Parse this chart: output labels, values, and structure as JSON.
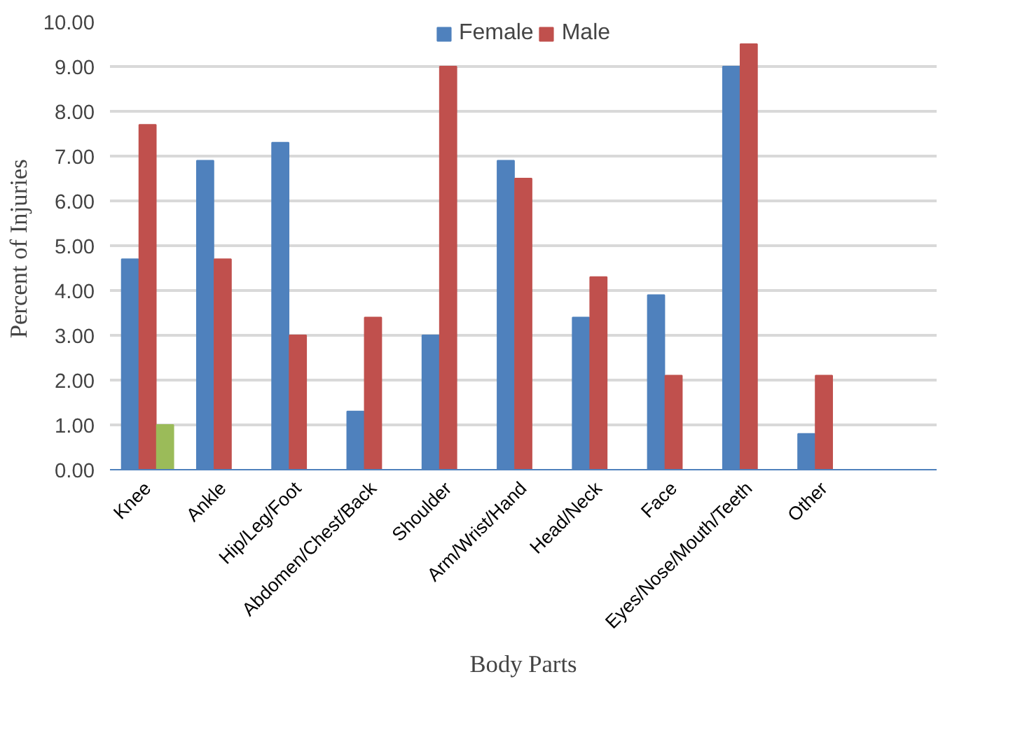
{
  "chart_data": {
    "type": "bar",
    "xlabel": "Body Parts",
    "ylabel": "Percent of  Injuries",
    "categories": [
      "Knee",
      "Ankle",
      "Hip/Leg/Foot",
      "Abdomen/Chest/Back",
      "Shoulder",
      "Arm/Wrist/Hand",
      "Head/Neck",
      "Face",
      "Eyes/Nose/Mouth/Teeth",
      "Other",
      null
    ],
    "series": [
      {
        "name": "Female",
        "color": "#4f81bd",
        "values": [
          4.7,
          6.9,
          7.3,
          1.3,
          3.0,
          6.9,
          3.4,
          3.9,
          9.0,
          0.8,
          null
        ]
      },
      {
        "name": "Male",
        "color": "#c0504d",
        "values": [
          7.7,
          4.7,
          3.0,
          3.4,
          9.0,
          6.5,
          4.3,
          2.1,
          9.5,
          2.1,
          null
        ]
      },
      {
        "color": "#9bbb59",
        "values": [
          1.0,
          null,
          null,
          null,
          null,
          null,
          null,
          null,
          null,
          null,
          null
        ]
      }
    ],
    "ylim": [
      0,
      10
    ],
    "yticks": [
      {
        "value": 0,
        "label": "0.00"
      },
      {
        "value": 1,
        "label": "1.00"
      },
      {
        "value": 2,
        "label": "2.00"
      },
      {
        "value": 3,
        "label": "3.00"
      },
      {
        "value": 4,
        "label": "4.00"
      },
      {
        "value": 5,
        "label": "5.00"
      },
      {
        "value": 6,
        "label": "6.00"
      },
      {
        "value": 7,
        "label": "7.00"
      },
      {
        "value": 8,
        "label": "8.00"
      },
      {
        "value": 9,
        "label": "9.00"
      },
      {
        "value": 10,
        "label": "10.00"
      }
    ],
    "grid": "y",
    "legend": "top"
  }
}
